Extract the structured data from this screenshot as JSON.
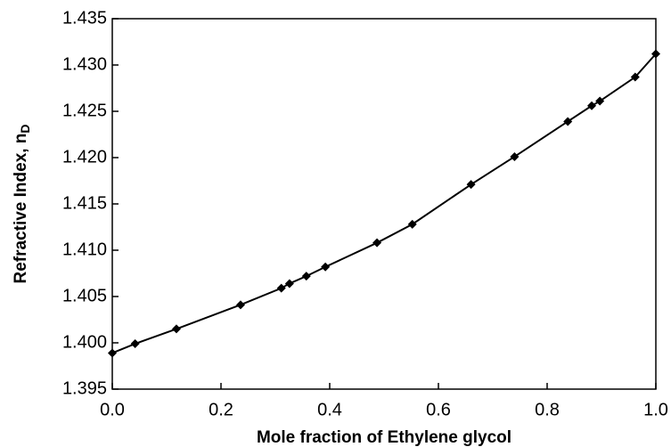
{
  "chart_data": {
    "type": "line",
    "x_label": "Mole fraction of Ethylene glycol",
    "y_label": "Refractive Index, n",
    "y_label_subscript": "D",
    "x": [
      0.0,
      0.042,
      0.118,
      0.236,
      0.311,
      0.326,
      0.357,
      0.392,
      0.487,
      0.552,
      0.66,
      0.74,
      0.838,
      0.882,
      0.897,
      0.962,
      1.0
    ],
    "series": [
      {
        "color": "#000000",
        "marker": "diamond",
        "values": [
          1.3989,
          1.3999,
          1.4015,
          1.4041,
          1.4059,
          1.4064,
          1.4072,
          1.4082,
          1.4108,
          1.4128,
          1.4171,
          1.4201,
          1.4239,
          1.4256,
          1.4261,
          1.4287,
          1.4312
        ]
      }
    ],
    "xlim": [
      0.0,
      1.0
    ],
    "ylim": [
      1.395,
      1.435
    ],
    "xticks": [
      {
        "value": 0.0,
        "label": "0.0"
      },
      0.2,
      0.4,
      0.6,
      0.8,
      {
        "value": 1.0,
        "label": "1.0"
      }
    ],
    "yticks": [
      1.395,
      {
        "value": 1.4,
        "label": "1.400"
      },
      1.405,
      {
        "value": 1.41,
        "label": "1.410"
      },
      1.415,
      {
        "value": 1.42,
        "label": "1.420"
      },
      1.425,
      {
        "value": 1.43,
        "label": "1.430"
      },
      1.435
    ],
    "grid": false
  }
}
